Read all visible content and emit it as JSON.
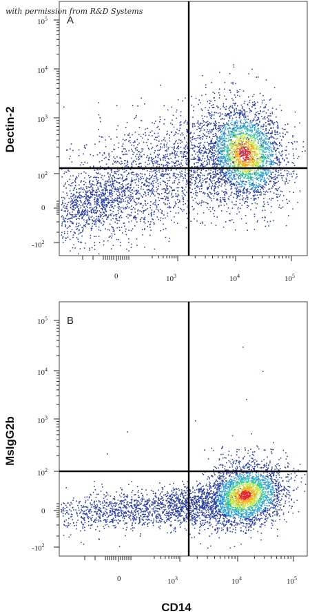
{
  "credit": "with permission from R&D Systems",
  "chart_data": [
    {
      "type": "scatter",
      "panel_label": "A",
      "xlabel": "",
      "ylabel": "Dectin-2",
      "x_scale": "biexponential",
      "y_scale": "biexponential",
      "x_ticks": [
        "0",
        "10^3",
        "10^4",
        "10^5"
      ],
      "y_ticks": [
        "10^5",
        "10^4",
        "10^3",
        "10^2",
        "0",
        "-10^2"
      ],
      "quadrant_gate": {
        "x": 2000,
        "y": 125
      },
      "populations": [
        {
          "x_center": 15000,
          "y_center": 250,
          "description": "dense CD14+ Dectin-2+ cluster"
        },
        {
          "x_center": -200,
          "y_center": 5,
          "description": "diffuse low population"
        }
      ]
    },
    {
      "type": "scatter",
      "panel_label": "B",
      "xlabel": "CD14",
      "ylabel": "MsIgG2b",
      "x_scale": "biexponential",
      "y_scale": "biexponential",
      "x_ticks": [
        "0",
        "10^3",
        "10^4",
        "10^5"
      ],
      "y_ticks": [
        "10^5",
        "10^4",
        "10^3",
        "10^2",
        "0",
        "-10^2"
      ],
      "quadrant_gate": {
        "x": 2000,
        "y": 125
      },
      "populations": [
        {
          "x_center": 15000,
          "y_center": 35,
          "description": "dense CD14+ cluster, isotype control"
        },
        {
          "x_center": -200,
          "y_center": 5,
          "description": "diffuse low population"
        }
      ]
    }
  ],
  "colors": {
    "density_low": "#2b3fa0",
    "density_mid1": "#2fa3d8",
    "density_mid2": "#3dc9a0",
    "density_mid3": "#c6e84a",
    "density_high": "#f5b11c",
    "density_peak": "#e3262a"
  }
}
